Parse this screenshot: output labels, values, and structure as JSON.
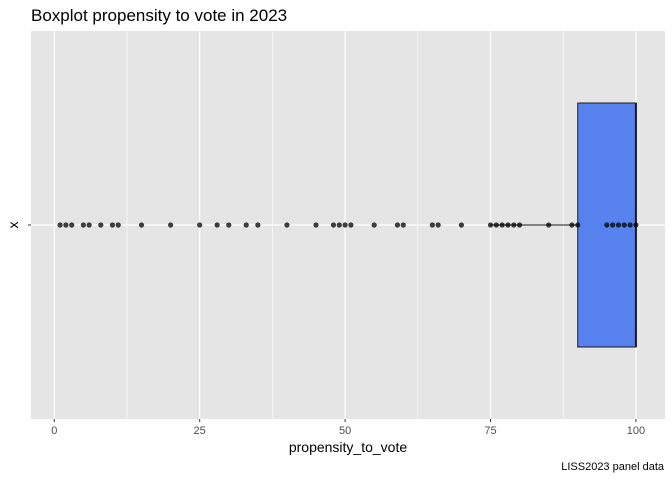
{
  "chart_data": {
    "type": "boxplot",
    "title": "Boxplot propensity to vote in 2023",
    "xlabel": "propensity_to_vote",
    "ylabel": "x",
    "caption": "LISS2023 panel data",
    "xlim": [
      -4,
      105
    ],
    "x_ticks": [
      0,
      25,
      50,
      75,
      100
    ],
    "y_categories": [
      "x"
    ],
    "grid": true,
    "legend": "none",
    "box": {
      "lower_whisker": 75,
      "q1": 90,
      "median": 100,
      "q3": 100,
      "upper_whisker": 100,
      "fill_color": "#5782ed"
    },
    "points": [
      1,
      2,
      3,
      5,
      6,
      8,
      10,
      11,
      15,
      20,
      25,
      28,
      30,
      33,
      35,
      40,
      45,
      48,
      49,
      50,
      51,
      55,
      59,
      60,
      65,
      66,
      70,
      75,
      76,
      77,
      78,
      79,
      80,
      85,
      89,
      90,
      95,
      96,
      97,
      98,
      99,
      100
    ],
    "colors": {
      "panel_background": "#e5e5e5",
      "grid_line": "#ffffff",
      "point": "#000000",
      "box_outline": "#1a1a1a"
    }
  }
}
